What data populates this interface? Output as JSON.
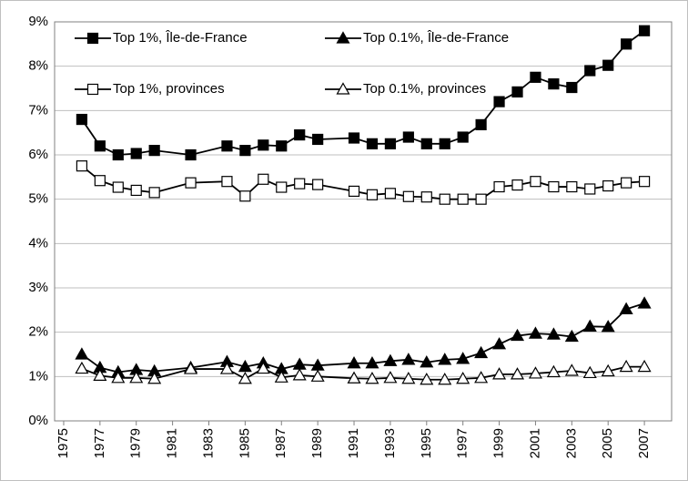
{
  "chart_data": {
    "type": "line",
    "x": [
      1976,
      1977,
      1978,
      1979,
      1980,
      1982,
      1984,
      1985,
      1986,
      1987,
      1988,
      1989,
      1991,
      1992,
      1993,
      1994,
      1995,
      1996,
      1997,
      1998,
      1999,
      2000,
      2001,
      2002,
      2003,
      2004,
      2005,
      2006,
      2007
    ],
    "series": [
      {
        "name": "Top 1%, Île-de-France",
        "color": "#000000",
        "marker": "square",
        "filled": true,
        "values": [
          6.8,
          6.2,
          6.0,
          6.03,
          6.1,
          6.0,
          6.2,
          6.1,
          6.22,
          6.2,
          6.45,
          6.35,
          6.38,
          6.25,
          6.25,
          6.4,
          6.25,
          6.25,
          6.4,
          6.68,
          7.2,
          7.42,
          7.75,
          7.6,
          7.52,
          7.9,
          8.02,
          8.5,
          8.8
        ]
      },
      {
        "name": "Top 0.1%, Île-de-France",
        "color": "#000000",
        "marker": "triangle",
        "filled": true,
        "values": [
          1.5,
          1.2,
          1.1,
          1.15,
          1.12,
          1.2,
          1.33,
          1.22,
          1.3,
          1.17,
          1.27,
          1.25,
          1.3,
          1.3,
          1.35,
          1.38,
          1.32,
          1.38,
          1.4,
          1.53,
          1.73,
          1.92,
          1.97,
          1.95,
          1.9,
          2.13,
          2.12,
          2.52,
          2.65
        ]
      },
      {
        "name": "Top 1%, provinces",
        "color": "#000000",
        "marker": "square",
        "filled": false,
        "values": [
          5.75,
          5.42,
          5.27,
          5.2,
          5.15,
          5.37,
          5.4,
          5.07,
          5.45,
          5.27,
          5.35,
          5.33,
          5.18,
          5.1,
          5.13,
          5.06,
          5.05,
          5.0,
          5.0,
          5.0,
          5.28,
          5.32,
          5.4,
          5.28,
          5.28,
          5.23,
          5.3,
          5.37,
          5.4
        ]
      },
      {
        "name": "Top 0.1%, provinces",
        "color": "#000000",
        "marker": "triangle",
        "filled": false,
        "values": [
          1.18,
          1.02,
          0.97,
          0.97,
          0.95,
          1.17,
          1.17,
          0.95,
          1.18,
          0.98,
          1.03,
          1.0,
          0.96,
          0.95,
          0.97,
          0.95,
          0.93,
          0.93,
          0.95,
          0.97,
          1.05,
          1.05,
          1.07,
          1.1,
          1.13,
          1.08,
          1.12,
          1.22,
          1.22
        ]
      }
    ],
    "xlim": [
      1974.5,
      2008.5
    ],
    "xticks": [
      1975,
      1977,
      1979,
      1981,
      1983,
      1985,
      1987,
      1989,
      1991,
      1993,
      1995,
      1997,
      1999,
      2001,
      2003,
      2005,
      2007
    ],
    "ylim": [
      0,
      9
    ],
    "yticks": [
      {
        "value": 0,
        "label": "0%"
      },
      {
        "value": 1,
        "label": "1%"
      },
      {
        "value": 2,
        "label": "2%"
      },
      {
        "value": 3,
        "label": "3%"
      },
      {
        "value": 4,
        "label": "4%"
      },
      {
        "value": 5,
        "label": "5%"
      },
      {
        "value": 6,
        "label": "6%"
      },
      {
        "value": 7,
        "label": "7%"
      },
      {
        "value": 8,
        "label": "8%"
      },
      {
        "value": 9,
        "label": "9%"
      }
    ],
    "grid": true,
    "legend": "top-left"
  }
}
